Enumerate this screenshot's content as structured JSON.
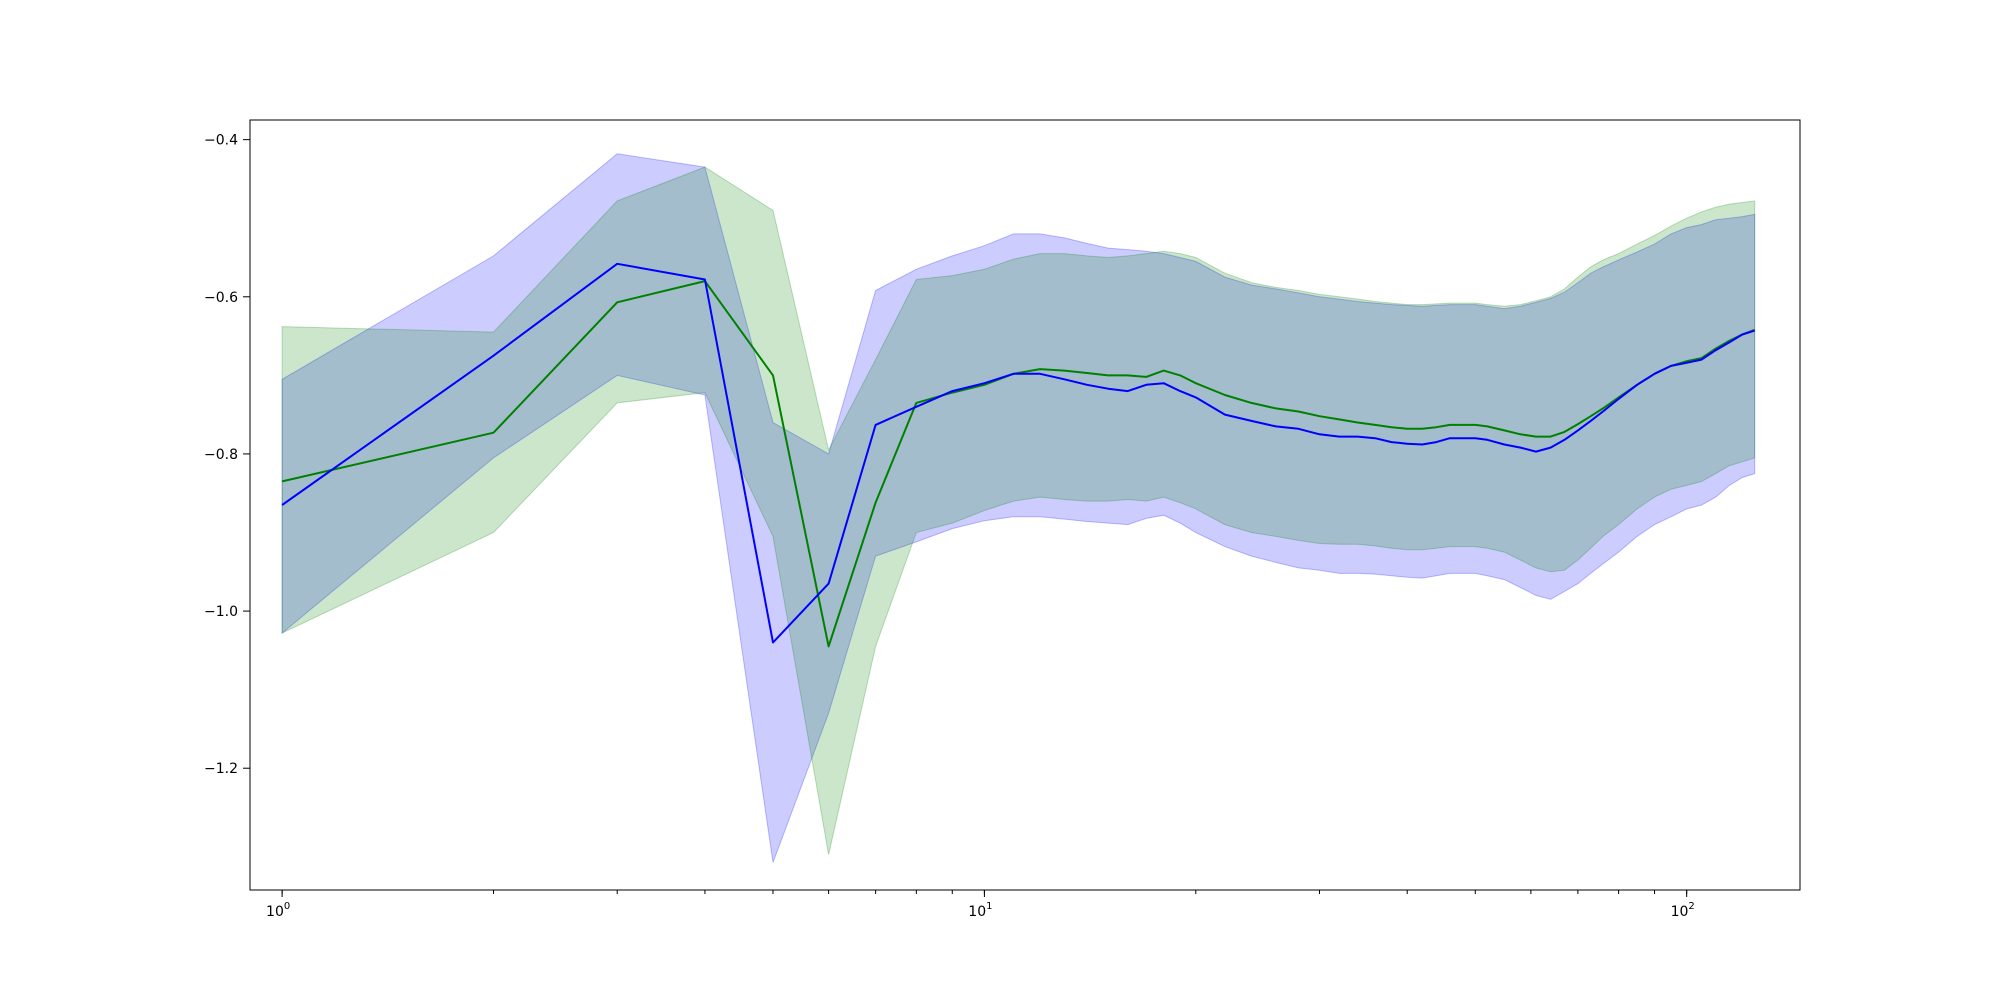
{
  "chart_data": {
    "type": "line",
    "title": "",
    "xlabel": "",
    "ylabel": "",
    "xscale": "log",
    "xlim": [
      0.9,
      145
    ],
    "ylim": [
      -1.355,
      -0.375
    ],
    "grid": false,
    "x_ticks": [
      {
        "value": 1,
        "label": "10",
        "exp": "0"
      },
      {
        "value": 10,
        "label": "10",
        "exp": "1"
      },
      {
        "value": 100,
        "label": "10",
        "exp": "2"
      }
    ],
    "y_ticks": [
      {
        "value": -0.4,
        "label": "−0.4"
      },
      {
        "value": -0.6,
        "label": "−0.6"
      },
      {
        "value": -0.8,
        "label": "−0.8"
      },
      {
        "value": -1.0,
        "label": "−1.0"
      },
      {
        "value": -1.2,
        "label": "−1.2"
      }
    ],
    "x": [
      1,
      2,
      3,
      4,
      5,
      6,
      7,
      8,
      9,
      10,
      11,
      12,
      13,
      14,
      15,
      16,
      17,
      18,
      19,
      20,
      22,
      24,
      26,
      28,
      30,
      32,
      34,
      36,
      38,
      40,
      42,
      44,
      46,
      48,
      50,
      52,
      55,
      58,
      61,
      64,
      67,
      70,
      73,
      76,
      80,
      85,
      90,
      95,
      100,
      105,
      110,
      115,
      120,
      125
    ],
    "series": [
      {
        "color": "#0000ff",
        "band_color": "#0000ff",
        "values": [
          -0.865,
          -0.675,
          -0.558,
          -0.578,
          -1.04,
          -0.965,
          -0.763,
          -0.74,
          -0.72,
          -0.71,
          -0.698,
          -0.698,
          -0.705,
          -0.712,
          -0.717,
          -0.72,
          -0.712,
          -0.71,
          -0.72,
          -0.728,
          -0.75,
          -0.758,
          -0.765,
          -0.768,
          -0.775,
          -0.778,
          -0.778,
          -0.78,
          -0.785,
          -0.787,
          -0.788,
          -0.785,
          -0.78,
          -0.78,
          -0.78,
          -0.782,
          -0.788,
          -0.792,
          -0.797,
          -0.792,
          -0.782,
          -0.77,
          -0.758,
          -0.746,
          -0.73,
          -0.712,
          -0.698,
          -0.688,
          -0.684,
          -0.68,
          -0.668,
          -0.658,
          -0.648,
          -0.643
        ],
        "lower": [
          -1.028,
          -0.805,
          -0.7,
          -0.725,
          -1.32,
          -1.13,
          -0.93,
          -0.912,
          -0.895,
          -0.885,
          -0.88,
          -0.88,
          -0.883,
          -0.886,
          -0.888,
          -0.89,
          -0.882,
          -0.878,
          -0.888,
          -0.9,
          -0.918,
          -0.93,
          -0.938,
          -0.945,
          -0.948,
          -0.952,
          -0.952,
          -0.953,
          -0.955,
          -0.957,
          -0.958,
          -0.955,
          -0.952,
          -0.952,
          -0.952,
          -0.955,
          -0.96,
          -0.97,
          -0.98,
          -0.985,
          -0.975,
          -0.965,
          -0.952,
          -0.94,
          -0.925,
          -0.905,
          -0.89,
          -0.88,
          -0.87,
          -0.865,
          -0.855,
          -0.84,
          -0.83,
          -0.825
        ],
        "upper": [
          -0.705,
          -0.548,
          -0.418,
          -0.435,
          -0.76,
          -0.8,
          -0.592,
          -0.565,
          -0.548,
          -0.535,
          -0.52,
          -0.52,
          -0.525,
          -0.532,
          -0.538,
          -0.54,
          -0.542,
          -0.545,
          -0.55,
          -0.555,
          -0.575,
          -0.585,
          -0.59,
          -0.595,
          -0.6,
          -0.603,
          -0.606,
          -0.608,
          -0.61,
          -0.611,
          -0.612,
          -0.611,
          -0.61,
          -0.61,
          -0.61,
          -0.612,
          -0.615,
          -0.612,
          -0.607,
          -0.602,
          -0.594,
          -0.582,
          -0.57,
          -0.562,
          -0.553,
          -0.543,
          -0.533,
          -0.52,
          -0.512,
          -0.508,
          -0.502,
          -0.5,
          -0.498,
          -0.495
        ]
      },
      {
        "color": "#008000",
        "band_color": "#008000",
        "values": [
          -0.835,
          -0.773,
          -0.607,
          -0.58,
          -0.7,
          -1.045,
          -0.862,
          -0.735,
          -0.722,
          -0.712,
          -0.698,
          -0.692,
          -0.694,
          -0.697,
          -0.7,
          -0.7,
          -0.702,
          -0.694,
          -0.7,
          -0.71,
          -0.725,
          -0.735,
          -0.742,
          -0.746,
          -0.752,
          -0.756,
          -0.76,
          -0.763,
          -0.766,
          -0.768,
          -0.768,
          -0.766,
          -0.763,
          -0.763,
          -0.763,
          -0.765,
          -0.77,
          -0.775,
          -0.778,
          -0.778,
          -0.772,
          -0.762,
          -0.752,
          -0.742,
          -0.728,
          -0.712,
          -0.698,
          -0.688,
          -0.682,
          -0.678,
          -0.666,
          -0.656,
          -0.648,
          -0.642
        ],
        "lower": [
          -1.028,
          -0.9,
          -0.735,
          -0.722,
          -0.905,
          -1.31,
          -1.045,
          -0.9,
          -0.888,
          -0.872,
          -0.86,
          -0.855,
          -0.858,
          -0.86,
          -0.86,
          -0.858,
          -0.86,
          -0.855,
          -0.862,
          -0.87,
          -0.89,
          -0.9,
          -0.905,
          -0.91,
          -0.914,
          -0.915,
          -0.915,
          -0.917,
          -0.92,
          -0.922,
          -0.922,
          -0.92,
          -0.918,
          -0.918,
          -0.918,
          -0.92,
          -0.925,
          -0.935,
          -0.945,
          -0.95,
          -0.948,
          -0.935,
          -0.92,
          -0.905,
          -0.89,
          -0.87,
          -0.855,
          -0.845,
          -0.84,
          -0.835,
          -0.825,
          -0.815,
          -0.81,
          -0.805
        ],
        "upper": [
          -0.638,
          -0.645,
          -0.478,
          -0.435,
          -0.49,
          -0.795,
          -0.68,
          -0.578,
          -0.573,
          -0.565,
          -0.552,
          -0.545,
          -0.545,
          -0.548,
          -0.55,
          -0.548,
          -0.545,
          -0.542,
          -0.545,
          -0.55,
          -0.57,
          -0.582,
          -0.588,
          -0.592,
          -0.597,
          -0.6,
          -0.603,
          -0.606,
          -0.608,
          -0.61,
          -0.61,
          -0.609,
          -0.608,
          -0.608,
          -0.608,
          -0.61,
          -0.612,
          -0.61,
          -0.605,
          -0.6,
          -0.59,
          -0.575,
          -0.562,
          -0.553,
          -0.545,
          -0.533,
          -0.522,
          -0.51,
          -0.5,
          -0.492,
          -0.486,
          -0.482,
          -0.48,
          -0.478
        ]
      }
    ]
  }
}
